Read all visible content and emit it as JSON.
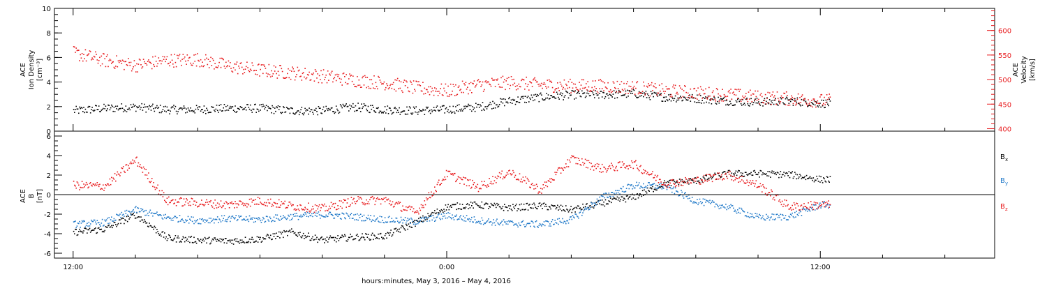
{
  "chart_data": [
    {
      "type": "scatter",
      "panel": "top",
      "left_axis": {
        "label_lines": [
          "ACE",
          "Ion Density",
          "[cm⁻³]"
        ],
        "ylim": [
          0,
          10
        ],
        "ticks": [
          0,
          2,
          4,
          6,
          8,
          10
        ],
        "tick_labels": [
          "0",
          "2",
          "4",
          "6",
          "8",
          "10"
        ],
        "color": "#000000"
      },
      "right_axis": {
        "label_lines": [
          "ACE",
          "Velocity",
          "[km/s]"
        ],
        "ylim": [
          395,
          645
        ],
        "ticks": [
          400,
          450,
          500,
          550,
          600
        ],
        "tick_labels": [
          "400",
          "450",
          "500",
          "550",
          "600"
        ],
        "color": "#e8191c"
      },
      "series": [
        {
          "color": "#000000",
          "axis": "left",
          "x_hours": [
            0,
            1,
            2,
            3,
            4,
            5,
            6,
            7,
            8,
            9,
            10,
            11,
            12,
            13,
            14,
            15,
            16,
            17,
            18,
            19,
            20,
            21,
            22,
            23,
            24
          ],
          "y": [
            1.7,
            1.9,
            2.0,
            1.8,
            1.8,
            1.9,
            1.9,
            1.7,
            1.7,
            2.0,
            1.8,
            1.7,
            1.8,
            2.0,
            2.5,
            2.8,
            3.0,
            3.0,
            3.1,
            2.8,
            2.7,
            2.5,
            2.4,
            2.5,
            2.3
          ]
        },
        {
          "color": "#e8191c",
          "axis": "right",
          "x_hours": [
            0,
            1,
            2,
            3,
            4,
            5,
            6,
            7,
            8,
            9,
            10,
            11,
            12,
            13,
            14,
            15,
            16,
            17,
            18,
            19,
            20,
            21,
            22,
            23,
            24
          ],
          "y": [
            555,
            540,
            530,
            540,
            542,
            528,
            520,
            515,
            508,
            500,
            494,
            484,
            478,
            490,
            495,
            490,
            488,
            488,
            485,
            478,
            474,
            470,
            465,
            462,
            458
          ]
        }
      ]
    },
    {
      "type": "scatter",
      "panel": "bottom",
      "left_axis": {
        "label_lines": [
          "ACE",
          "B",
          "[nT]"
        ],
        "ylim": [
          -6.5,
          6.5
        ],
        "ticks": [
          -6,
          -4,
          -2,
          0,
          2,
          4,
          6
        ],
        "tick_labels": [
          "-6",
          "-4",
          "-2",
          "0",
          "2",
          "4",
          "6"
        ],
        "color": "#000000"
      },
      "series": [
        {
          "name": "Bx",
          "label_main": "B",
          "label_sub": "x",
          "color": "#000000",
          "x_hours": [
            0,
            1,
            2,
            3,
            4,
            5,
            6,
            7,
            8,
            9,
            10,
            11,
            12,
            13,
            14,
            15,
            16,
            17,
            18,
            19,
            20,
            21,
            22,
            23,
            24
          ],
          "y": [
            -3.8,
            -3.5,
            -2.0,
            -4.4,
            -4.6,
            -4.7,
            -4.5,
            -3.8,
            -4.6,
            -4.3,
            -4.2,
            -2.8,
            -1.2,
            -1.0,
            -1.3,
            -1.1,
            -1.5,
            -0.8,
            -0.2,
            1.2,
            1.5,
            2.2,
            2.2,
            2.1,
            1.6
          ]
        },
        {
          "name": "By",
          "label_main": "B",
          "label_sub": "y",
          "color": "#1f78c8",
          "x_hours": [
            0,
            1,
            2,
            3,
            4,
            5,
            6,
            7,
            8,
            9,
            10,
            11,
            12,
            13,
            14,
            15,
            16,
            17,
            18,
            19,
            20,
            21,
            22,
            23,
            24
          ],
          "y": [
            -3.0,
            -2.8,
            -1.5,
            -2.3,
            -2.6,
            -2.4,
            -2.5,
            -2.2,
            -2.0,
            -2.2,
            -2.5,
            -2.7,
            -2.1,
            -2.6,
            -2.9,
            -3.0,
            -2.5,
            -0.2,
            1.0,
            0.9,
            -0.6,
            -1.2,
            -2.3,
            -2.2,
            -1.0
          ]
        },
        {
          "name": "Bz",
          "label_main": "B",
          "label_sub": "z",
          "color": "#e8191c",
          "x_hours": [
            0,
            1,
            2,
            3,
            4,
            5,
            6,
            7,
            8,
            9,
            10,
            11,
            12,
            13,
            14,
            15,
            16,
            17,
            18,
            19,
            20,
            21,
            22,
            23,
            24
          ],
          "y": [
            1.0,
            0.9,
            3.6,
            -0.6,
            -0.8,
            -1.0,
            -0.6,
            -1.1,
            -1.4,
            -0.6,
            -0.5,
            -1.8,
            2.2,
            0.8,
            2.4,
            0.5,
            3.7,
            2.7,
            3.2,
            1.2,
            1.5,
            2.1,
            1.0,
            -1.2,
            -1.0
          ]
        }
      ]
    }
  ],
  "x_axis": {
    "range_hours": [
      -0.6,
      29.6
    ],
    "tick_hours": [
      0,
      12,
      24
    ],
    "tick_labels": [
      "12:00",
      "0:00",
      "12:00"
    ],
    "minor_step_hours": 2,
    "title": "hours:minutes,  May  3, 2016 – May  4, 2016",
    "data_end_hours": 24.3
  },
  "zero_line": {
    "value": 0
  }
}
